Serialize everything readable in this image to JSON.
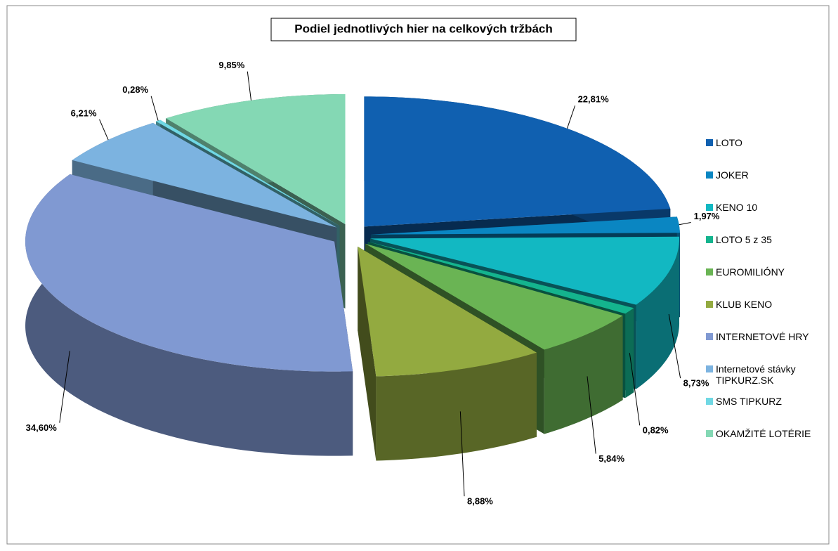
{
  "chart_data": {
    "type": "pie",
    "title": "Podiel jednotlivých hier na celkových tržbách",
    "categories": [
      "LOTO",
      "JOKER",
      "KENO 10",
      "LOTO 5 z 35",
      "EUROMILIÓNY",
      "KLUB KENO",
      "INTERNETOVÉ HRY",
      "Internetové stávky TIPKURZ.SK",
      "SMS TIPKURZ",
      "OKAMŽITÉ LOTÉRIE"
    ],
    "values": [
      22.81,
      1.97,
      8.73,
      0.82,
      5.84,
      8.88,
      34.6,
      6.21,
      0.28,
      9.85
    ],
    "value_labels": [
      "22,81%",
      "1,97%",
      "8,73%",
      "0,82%",
      "5,84%",
      "8,88%",
      "34,60%",
      "6,21%",
      "0,28%",
      "9,85%"
    ],
    "colors": [
      "#1060b0",
      "#0a86c2",
      "#12b8c2",
      "#14b48e",
      "#6ab454",
      "#93aa40",
      "#8099d2",
      "#7cb3e0",
      "#70d8e4",
      "#84d8b4"
    ],
    "legend": "right"
  }
}
